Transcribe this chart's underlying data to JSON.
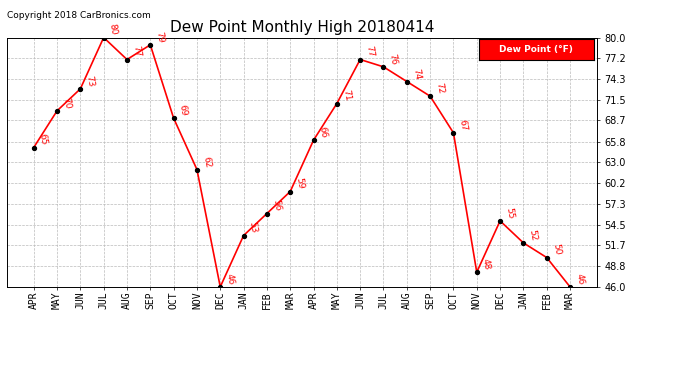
{
  "title": "Dew Point Monthly High 20180414",
  "copyright": "Copyright 2018 CarBronics.com",
  "legend_label": "Dew Point (°F)",
  "months": [
    "APR",
    "MAY",
    "JUN",
    "JUL",
    "AUG",
    "SEP",
    "OCT",
    "NOV",
    "DEC",
    "JAN",
    "FEB",
    "MAR",
    "APR",
    "MAY",
    "JUN",
    "JUL",
    "AUG",
    "SEP",
    "OCT",
    "NOV",
    "DEC",
    "JAN",
    "FEB",
    "MAR"
  ],
  "values": [
    65,
    70,
    73,
    80,
    77,
    79,
    69,
    62,
    46,
    53,
    56,
    59,
    66,
    71,
    77,
    76,
    74,
    72,
    67,
    48,
    55,
    52,
    50,
    46
  ],
  "ylim_min": 46.0,
  "ylim_max": 80.0,
  "yticks": [
    46.0,
    48.8,
    51.7,
    54.5,
    57.3,
    60.2,
    63.0,
    65.8,
    68.7,
    71.5,
    74.3,
    77.2,
    80.0
  ],
  "line_color": "red",
  "marker_color": "black",
  "bg_color": "#ffffff",
  "grid_color": "#bbbbbb",
  "legend_bg": "red",
  "legend_text_color": "white",
  "title_fontsize": 11,
  "label_fontsize": 6.5,
  "tick_fontsize": 7,
  "copyright_fontsize": 6.5
}
